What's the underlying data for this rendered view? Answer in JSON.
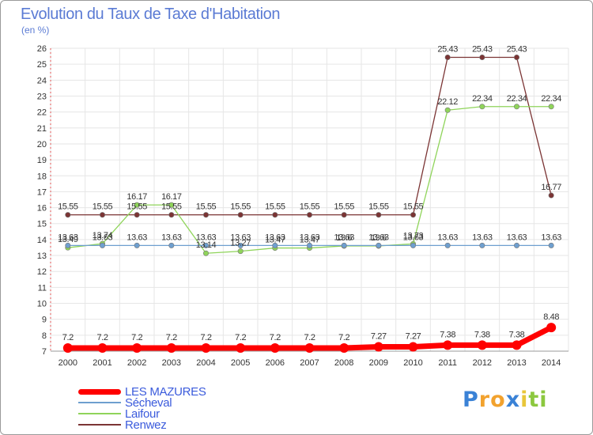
{
  "chart_data": {
    "type": "line",
    "title": "Evolution du Taux de Taxe d'Habitation",
    "subtitle": "(en %)",
    "xlabel": "",
    "ylabel": "(en %)",
    "x": [
      "2000",
      "2001",
      "2002",
      "2003",
      "2004",
      "2005",
      "2006",
      "2007",
      "2008",
      "2009",
      "2010",
      "2011",
      "2012",
      "2013",
      "2014"
    ],
    "ylim": [
      7,
      26
    ],
    "yticks": [
      "7",
      "8",
      "9",
      "10",
      "11",
      "12",
      "13",
      "14",
      "15",
      "16",
      "17",
      "18",
      "19",
      "20",
      "21",
      "22",
      "23",
      "24",
      "25",
      "26"
    ],
    "grid": true,
    "legend_position": "bottom-left",
    "series": [
      {
        "name": "LES MAZURES",
        "color": "#ff0000",
        "values": [
          7.2,
          7.2,
          7.2,
          7.2,
          7.2,
          7.2,
          7.2,
          7.2,
          7.2,
          7.27,
          7.27,
          7.38,
          7.38,
          7.38,
          8.48
        ],
        "labels": [
          "7.2",
          "7.2",
          "7.2",
          "7.2",
          "7.2",
          "7.2",
          "7.2",
          "7.2",
          "7.2",
          "7.27",
          "7.27",
          "7.38",
          "7.38",
          "7.38",
          "8.48"
        ]
      },
      {
        "name": "Sécheval",
        "color": "#6e9fcf",
        "values": [
          13.63,
          13.63,
          13.63,
          13.63,
          13.63,
          13.63,
          13.63,
          13.63,
          13.63,
          13.63,
          13.63,
          13.63,
          13.63,
          13.63,
          13.63
        ],
        "labels": [
          "13.63",
          "13.63",
          "13.63",
          "13.63",
          "13.63",
          "13.63",
          "13.63",
          "13.63",
          "13.63",
          "13.63",
          "13.63",
          "13.63",
          "13.63",
          "13.63",
          "13.63"
        ]
      },
      {
        "name": "Laifour",
        "color": "#8fd45a",
        "values": [
          13.49,
          13.74,
          16.17,
          16.17,
          13.14,
          13.27,
          13.47,
          13.47,
          13.6,
          13.6,
          13.73,
          22.12,
          22.34,
          22.34,
          22.34
        ],
        "labels": [
          "13.49",
          "13.74",
          "16.17",
          "16.17",
          "13.14",
          "13.27",
          "13.47",
          "13.47",
          "13.6",
          "13.6",
          "13.73",
          "22.12",
          "22.34",
          "22.34",
          "22.34"
        ]
      },
      {
        "name": "Renwez",
        "color": "#7b3434",
        "values": [
          15.55,
          15.55,
          15.55,
          15.55,
          15.55,
          15.55,
          15.55,
          15.55,
          15.55,
          15.55,
          15.55,
          25.43,
          25.43,
          25.43,
          16.77
        ],
        "labels": [
          "15.55",
          "15.55",
          "15.55",
          "15.55",
          "15.55",
          "15.55",
          "15.55",
          "15.55",
          "15.55",
          "15.55",
          "15.55",
          "25.43",
          "25.43",
          "25.43",
          "16.77"
        ]
      }
    ]
  },
  "logo": {
    "letters": [
      "P",
      "r",
      "o",
      "x",
      "i",
      "t",
      "i"
    ],
    "colors": [
      "#3a82d6",
      "#f2a22e",
      "#f2a22e",
      "#3a82d6",
      "#e8c63a",
      "#8cc83f",
      "#8cc83f"
    ]
  }
}
